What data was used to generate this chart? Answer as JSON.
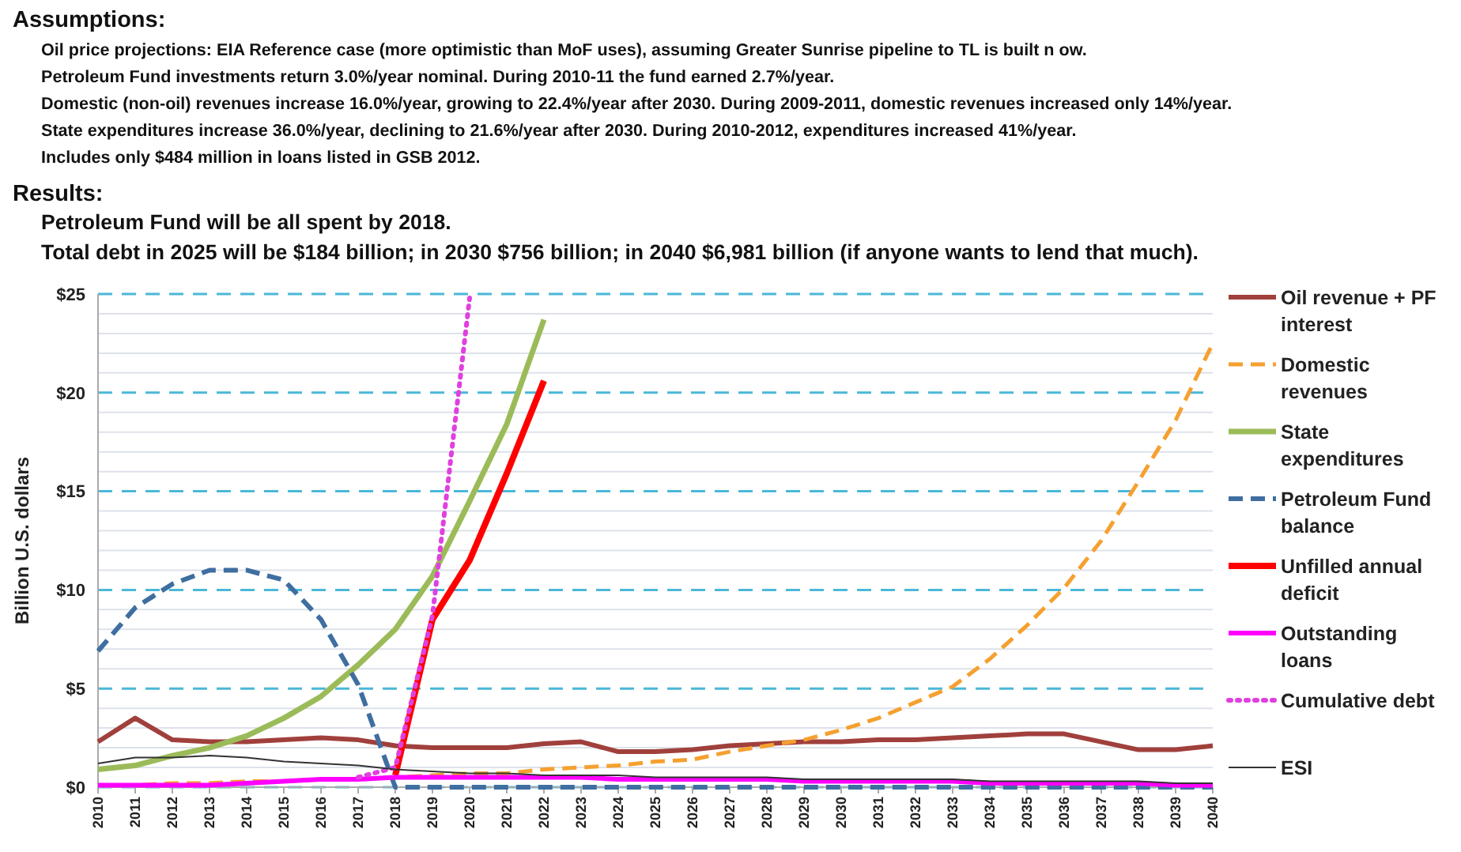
{
  "chart_data": {
    "type": "line",
    "title": "Assumptions:",
    "subtitle": "Results:",
    "annotations": [
      "Oil price projections: EIA Reference case (more optimistic than MoF uses), assuming Greater Sunrise pipeline to TL is built n ow.",
      "Petroleum Fund investments return 3.0%/year nominal.  During 2010-11 the fund earned 2.7%/year.",
      "Domestic (non-oil) revenues increase 16.0%/year, growing to 22.4%/year after 2030.  During 2009-2011, domestic revenues increased only 14%/year.",
      "State expenditures increase 36.0%/year, declining to 21.6%/year after 2030. During 2010-2012, expenditures increased 41%/year.",
      "Includes only $484 million in loans listed in GSB 2012.",
      "Petroleum Fund will be all spent by 2018.",
      "Total debt in 2025 will be $184 billion; in 2030 $756 billion; in 2040 $6,981 billion (if anyone wants to lend that much)."
    ],
    "ylabel": "Billion U.S. dollars",
    "categories": [
      "2010",
      "2011",
      "2012",
      "2013",
      "2014",
      "2015",
      "2016",
      "2017",
      "2018",
      "2019",
      "2020",
      "2021",
      "2022",
      "2023",
      "2024",
      "2025",
      "2026",
      "2027",
      "2028",
      "2029",
      "2030",
      "2031",
      "2032",
      "2033",
      "2034",
      "2035",
      "2036",
      "2037",
      "2038",
      "2039",
      "2040"
    ],
    "ylim": [
      0,
      25
    ],
    "yticks": [
      {
        "value": 0,
        "label": "$0"
      },
      {
        "value": 1,
        "label": null
      },
      {
        "value": 2,
        "label": null
      },
      {
        "value": 3,
        "label": null
      },
      {
        "value": 4,
        "label": null
      },
      {
        "value": 5,
        "label": "$5"
      },
      {
        "value": 6,
        "label": null
      },
      {
        "value": 7,
        "label": null
      },
      {
        "value": 8,
        "label": null
      },
      {
        "value": 9,
        "label": null
      },
      {
        "value": 10,
        "label": "$10"
      },
      {
        "value": 11,
        "label": null
      },
      {
        "value": 12,
        "label": null
      },
      {
        "value": 13,
        "label": null
      },
      {
        "value": 14,
        "label": null
      },
      {
        "value": 15,
        "label": "$15"
      },
      {
        "value": 16,
        "label": null
      },
      {
        "value": 17,
        "label": null
      },
      {
        "value": 18,
        "label": null
      },
      {
        "value": 19,
        "label": null
      },
      {
        "value": 20,
        "label": "$20"
      },
      {
        "value": 21,
        "label": null
      },
      {
        "value": 22,
        "label": null
      },
      {
        "value": 23,
        "label": null
      },
      {
        "value": 24,
        "label": null
      },
      {
        "value": 25,
        "label": "$25"
      }
    ],
    "grid": "y",
    "legend": "right",
    "series": [
      {
        "name": "Oil revenue + PF interest",
        "color": "#a0403c",
        "line_style": "solid",
        "values": [
          2.3,
          3.5,
          2.4,
          2.3,
          2.3,
          2.4,
          2.5,
          2.4,
          2.1,
          2.0,
          2.0,
          2.0,
          2.2,
          2.3,
          1.8,
          1.8,
          1.9,
          2.1,
          2.2,
          2.3,
          2.3,
          2.4,
          2.4,
          2.5,
          2.6,
          2.7,
          2.7,
          2.3,
          1.9,
          1.9,
          2.1
        ]
      },
      {
        "name": "Domestic revenues",
        "color": "#f5a030",
        "line_style": "dashed",
        "values": [
          0.1,
          0.1,
          0.2,
          0.2,
          0.3,
          0.3,
          0.4,
          0.4,
          0.5,
          0.6,
          0.7,
          0.7,
          0.9,
          1.0,
          1.1,
          1.3,
          1.4,
          1.8,
          2.1,
          2.4,
          2.9,
          3.5,
          4.3,
          5.1,
          6.5,
          8.2,
          10.1,
          12.5,
          15.5,
          18.6,
          22.5
        ]
      },
      {
        "name": "State expenditures",
        "color": "#9bbb59",
        "line_style": "solid",
        "values": [
          0.9,
          1.1,
          1.6,
          2.0,
          2.6,
          3.5,
          4.6,
          6.2,
          8.0,
          10.7,
          14.5,
          18.4,
          23.7,
          null,
          null,
          null,
          null,
          null,
          null,
          null,
          null,
          null,
          null,
          null,
          null,
          null,
          null,
          null,
          null,
          null,
          null
        ]
      },
      {
        "name": "Petroleum Fund balance",
        "color": "#3f6ea0",
        "line_style": "dashed",
        "values": [
          6.9,
          9.1,
          10.3,
          11.0,
          11.0,
          10.5,
          8.5,
          5.2,
          0,
          0,
          0,
          0,
          0,
          0,
          0,
          0,
          0,
          0,
          0,
          0,
          0,
          0,
          0,
          0,
          0,
          0,
          0,
          0,
          0,
          0,
          0
        ]
      },
      {
        "name": "Unfilled annual deficit",
        "color": "#ff0000",
        "line_style": "solid",
        "values": [
          null,
          null,
          null,
          null,
          null,
          null,
          null,
          null,
          0.6,
          8.5,
          11.5,
          15.9,
          20.6,
          null,
          null,
          null,
          null,
          null,
          null,
          null,
          null,
          null,
          null,
          null,
          null,
          null,
          null,
          null,
          null,
          null,
          null
        ]
      },
      {
        "name": "Outstanding loans",
        "color": "#ff00ff",
        "line_style": "solid",
        "values": [
          0.1,
          0.1,
          0.1,
          0.1,
          0.2,
          0.3,
          0.4,
          0.4,
          0.5,
          0.5,
          0.5,
          0.5,
          0.5,
          0.5,
          0.4,
          0.4,
          0.4,
          0.4,
          0.4,
          0.3,
          0.3,
          0.3,
          0.3,
          0.3,
          0.2,
          0.2,
          0.2,
          0.2,
          0.2,
          0.1,
          0.1
        ]
      },
      {
        "name": "Cumulative debt",
        "color": "#e040e0",
        "line_style": "dotted",
        "values": [
          null,
          null,
          null,
          null,
          null,
          null,
          null,
          0.5,
          1.0,
          8.7,
          24.8,
          null,
          null,
          null,
          null,
          null,
          null,
          null,
          null,
          null,
          null,
          null,
          null,
          null,
          null,
          null,
          null,
          null,
          null,
          null,
          null
        ]
      },
      {
        "name": "ESI",
        "color": "#333333",
        "line_style": "solid",
        "values": [
          1.2,
          1.5,
          1.5,
          1.6,
          1.5,
          1.3,
          1.2,
          1.1,
          0.9,
          0.8,
          0.7,
          0.7,
          0.6,
          0.6,
          0.6,
          0.5,
          0.5,
          0.5,
          0.5,
          0.4,
          0.4,
          0.4,
          0.4,
          0.4,
          0.3,
          0.3,
          0.3,
          0.3,
          0.3,
          0.2,
          0.2
        ]
      }
    ]
  }
}
